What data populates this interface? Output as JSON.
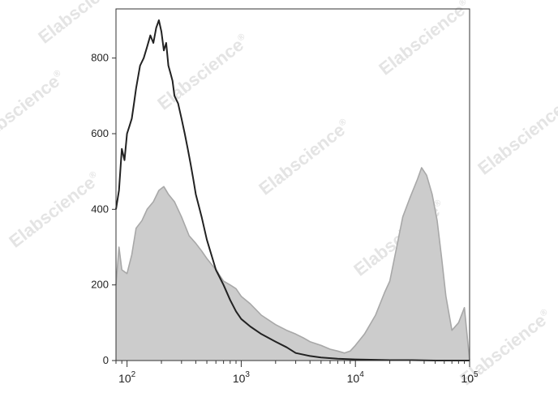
{
  "chart_data": {
    "type": "area",
    "title": "",
    "xlabel": "",
    "ylabel": "",
    "xscale": "log",
    "xlim": [
      80,
      100000
    ],
    "ylim": [
      0,
      930
    ],
    "grid": false,
    "legend": "none",
    "x_ticks": [
      {
        "value": 100,
        "base": "10",
        "exp": "2"
      },
      {
        "value": 1000,
        "base": "10",
        "exp": "3"
      },
      {
        "value": 10000,
        "base": "10",
        "exp": "4"
      },
      {
        "value": 100000,
        "base": "10",
        "exp": "5"
      }
    ],
    "y_ticks": [
      {
        "value": 0,
        "label": "0"
      },
      {
        "value": 200,
        "label": "200"
      },
      {
        "value": 400,
        "label": "400"
      },
      {
        "value": 600,
        "label": "600"
      },
      {
        "value": 800,
        "label": "800"
      }
    ],
    "series": [
      {
        "style": "filled",
        "fill_color": "#cccccc",
        "line_color": "#a8a8a8",
        "x": [
          80,
          85,
          90,
          100,
          110,
          120,
          135,
          150,
          170,
          190,
          210,
          230,
          260,
          300,
          350,
          400,
          450,
          500,
          600,
          700,
          800,
          900,
          1000,
          1200,
          1500,
          2000,
          2500,
          3000,
          3500,
          4000,
          5000,
          6000,
          7000,
          8000,
          9000,
          10000,
          12000,
          15000,
          18000,
          20000,
          23000,
          26000,
          30000,
          35000,
          38000,
          42000,
          47000,
          52000,
          57000,
          62000,
          70000,
          80000,
          90000,
          100000
        ],
        "values": [
          200,
          300,
          240,
          230,
          280,
          350,
          370,
          400,
          420,
          450,
          460,
          440,
          420,
          380,
          330,
          310,
          290,
          270,
          240,
          210,
          200,
          190,
          170,
          150,
          120,
          95,
          80,
          70,
          60,
          50,
          40,
          30,
          25,
          20,
          25,
          40,
          70,
          120,
          180,
          210,
          300,
          380,
          430,
          480,
          510,
          490,
          440,
          370,
          270,
          170,
          80,
          100,
          140,
          0
        ]
      },
      {
        "style": "line",
        "line_color": "#222222",
        "x": [
          80,
          85,
          90,
          95,
          100,
          105,
          110,
          115,
          120,
          130,
          140,
          150,
          160,
          170,
          180,
          190,
          200,
          210,
          220,
          230,
          240,
          250,
          260,
          280,
          300,
          320,
          340,
          360,
          380,
          400,
          450,
          500,
          600,
          700,
          800,
          900,
          1000,
          1200,
          1500,
          2000,
          2500,
          3000,
          4000,
          5000,
          7000,
          10000,
          15000,
          20000,
          30000,
          50000,
          100000
        ],
        "values": [
          400,
          450,
          560,
          530,
          600,
          620,
          640,
          680,
          720,
          780,
          800,
          830,
          860,
          840,
          880,
          900,
          870,
          820,
          840,
          780,
          760,
          740,
          700,
          680,
          640,
          600,
          560,
          520,
          480,
          440,
          380,
          320,
          240,
          200,
          160,
          130,
          110,
          90,
          70,
          50,
          35,
          20,
          12,
          8,
          5,
          3,
          2,
          1,
          1,
          0,
          0
        ]
      }
    ]
  },
  "watermark": {
    "text": "Elabscience",
    "registered": "®"
  }
}
